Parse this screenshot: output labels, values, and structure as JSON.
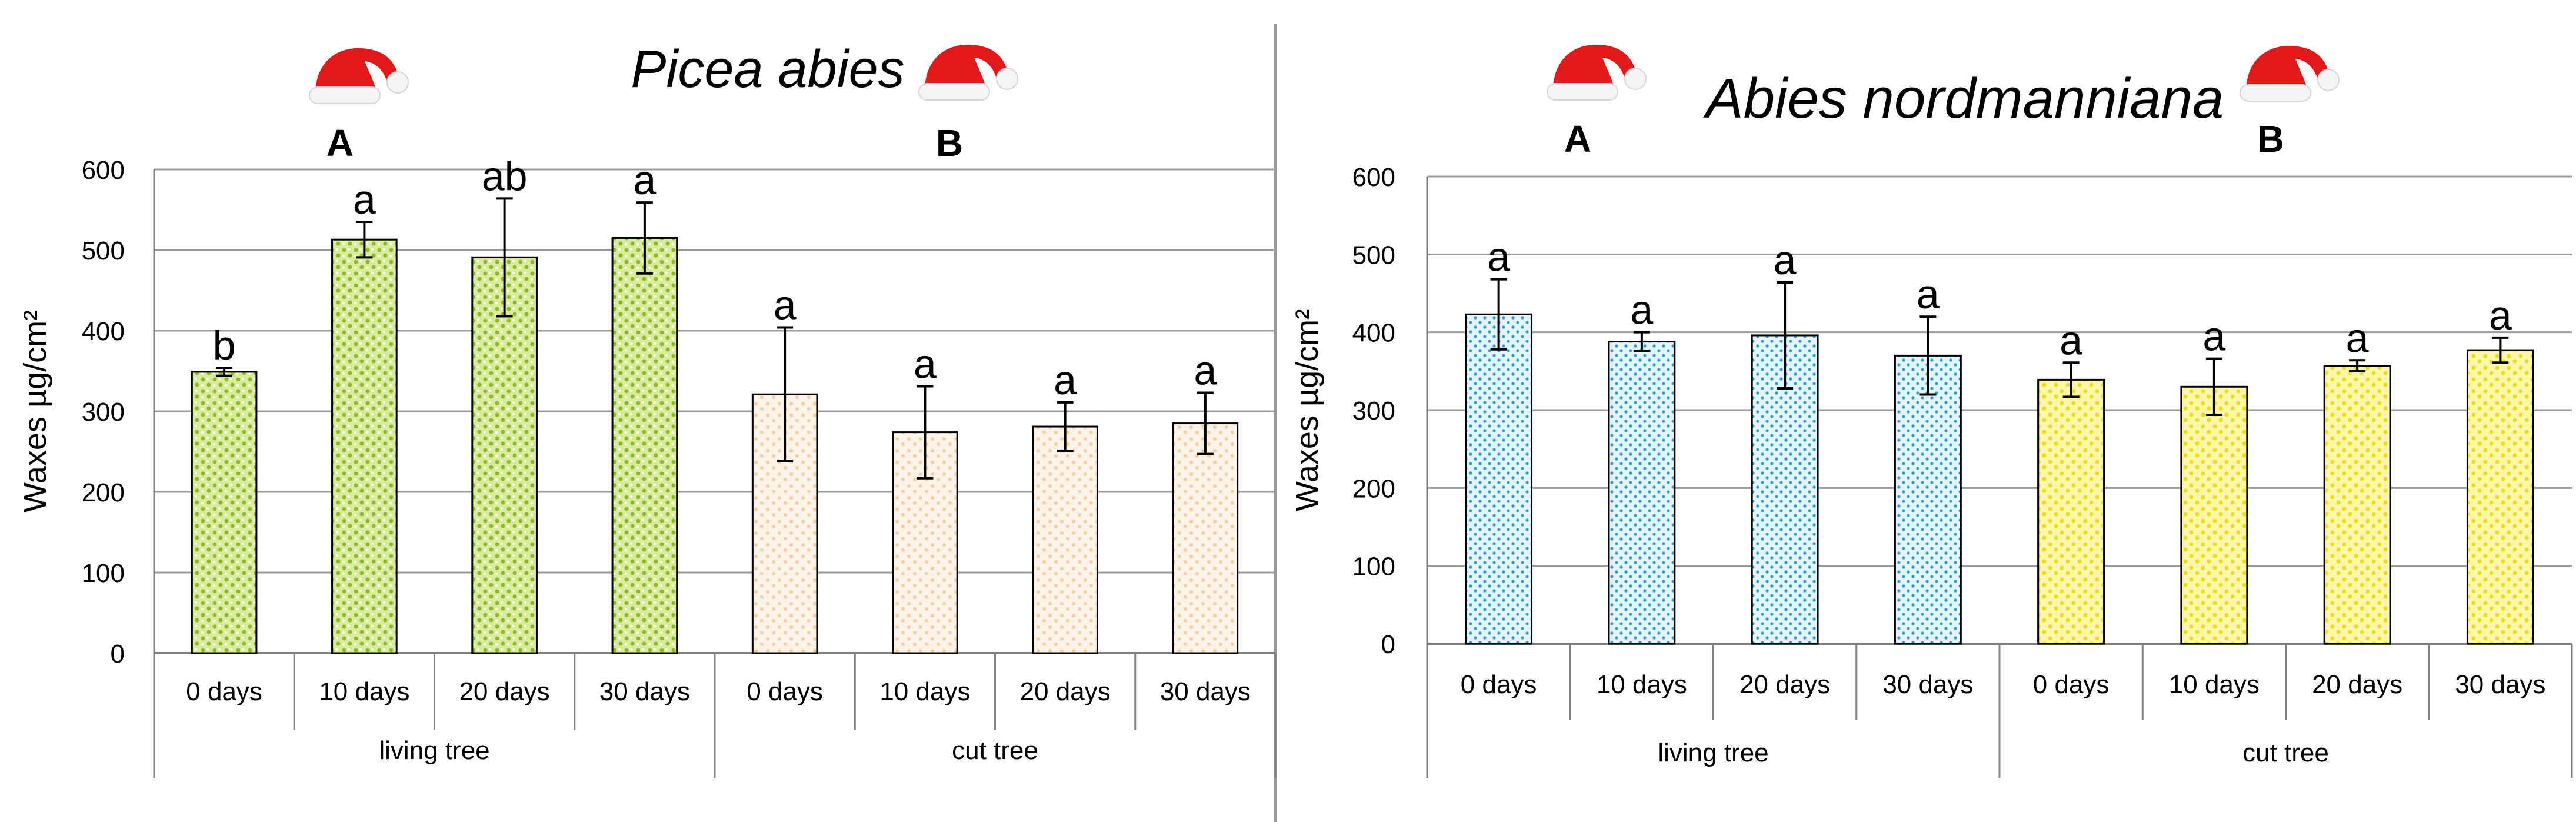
{
  "chart_data": [
    {
      "type": "bar",
      "title": "Picea abies",
      "ylabel": "Waxes  µg/cm²",
      "ylim": [
        0,
        600
      ],
      "yticks": [
        0,
        100,
        200,
        300,
        400,
        500,
        600
      ],
      "grid": true,
      "categories": [
        "0 days",
        "10 days",
        "20 days",
        "30 days",
        "0 days",
        "10 days",
        "20 days",
        "30 days"
      ],
      "groups": [
        {
          "name": "living tree",
          "letter": "A",
          "color": "#b5d64a",
          "pattern": "dots-green"
        },
        {
          "name": "cut tree",
          "letter": "B",
          "color": "#f4dcc0",
          "pattern": "dots-peach"
        }
      ],
      "values": [
        349,
        513,
        491,
        515,
        321,
        274,
        281,
        285
      ],
      "errors": [
        5,
        22,
        73,
        44,
        83,
        57,
        30,
        38
      ],
      "significance": [
        "b",
        "a",
        "ab",
        "a",
        "a",
        "a",
        "a",
        "a"
      ],
      "icon": "santa-hat-icon"
    },
    {
      "type": "bar",
      "title": "Abies nordmanniana",
      "ylabel": "Waxes  µg/cm²",
      "ylim": [
        0,
        600
      ],
      "yticks": [
        0,
        100,
        200,
        300,
        400,
        500,
        600
      ],
      "grid": true,
      "categories": [
        "0 days",
        "10 days",
        "20 days",
        "30 days",
        "0 days",
        "10 days",
        "20 days",
        "30 days"
      ],
      "groups": [
        {
          "name": "living tree",
          "letter": "A",
          "color": "#7ec8e3",
          "pattern": "dots-blue"
        },
        {
          "name": "cut tree",
          "letter": "B",
          "color": "#f5ee4a",
          "pattern": "dots-yellow"
        }
      ],
      "values": [
        423,
        388,
        396,
        370,
        339,
        330,
        357,
        377
      ],
      "errors": [
        45,
        12,
        68,
        50,
        22,
        36,
        7,
        16
      ],
      "significance": [
        "a",
        "a",
        "a",
        "a",
        "a",
        "a",
        "a",
        "a"
      ],
      "icon": "santa-hat-icon"
    }
  ]
}
